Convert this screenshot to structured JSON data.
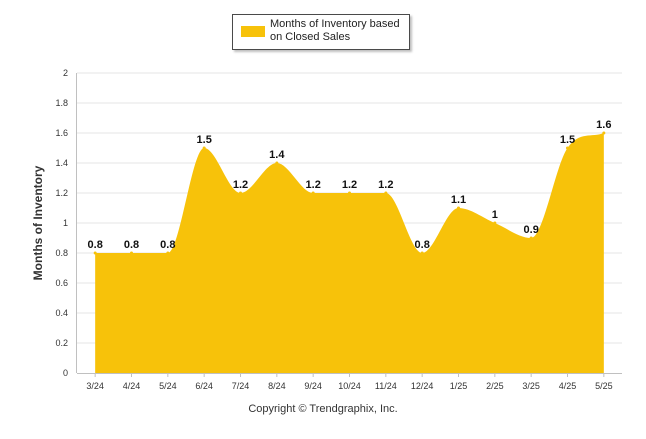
{
  "legend": {
    "label": "Months of Inventory based on Closed Sales",
    "color": "#f7c20a"
  },
  "copyright": "Copyright © Trendgraphix, Inc.",
  "chart_data": {
    "type": "area",
    "categories": [
      "3/24",
      "4/24",
      "5/24",
      "6/24",
      "7/24",
      "8/24",
      "9/24",
      "10/24",
      "11/24",
      "12/24",
      "1/25",
      "2/25",
      "3/25",
      "4/25",
      "5/25"
    ],
    "series": [
      {
        "name": "Months of Inventory based on Closed Sales",
        "values": [
          0.8,
          0.8,
          0.8,
          1.5,
          1.2,
          1.4,
          1.2,
          1.2,
          1.2,
          0.8,
          1.1,
          1,
          0.9,
          1.5,
          1.6
        ],
        "labels": [
          "0.8",
          "0.8",
          "0.8",
          "1.5",
          "1.2",
          "1.4",
          "1.2",
          "1.2",
          "1.2",
          "0.8",
          "1.1",
          "1",
          "0.9",
          "1.5",
          "1.6"
        ],
        "color": "#f7c20a"
      }
    ],
    "ylabel": "Months of Inventory",
    "xlabel": "",
    "ylim": [
      0,
      2
    ],
    "yticks": [
      "0",
      "0.2",
      "0.4",
      "0.6",
      "0.8",
      "1",
      "1.2",
      "1.4",
      "1.6",
      "1.8",
      "2"
    ],
    "grid": true,
    "legend_position": "top-center"
  }
}
